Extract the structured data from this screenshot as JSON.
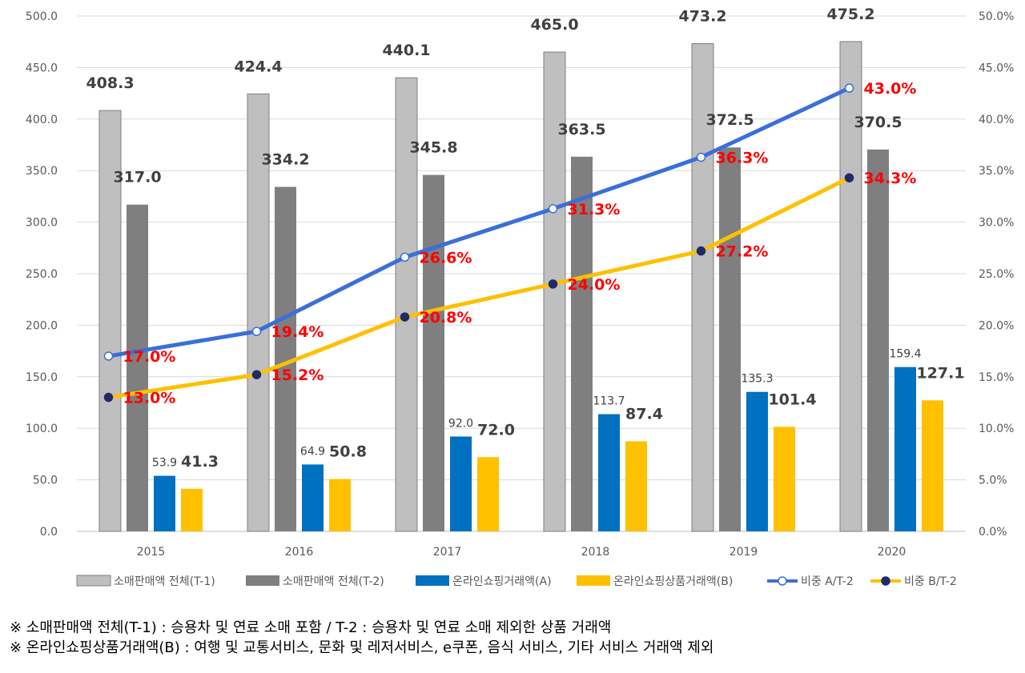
{
  "chart_data": {
    "type": "bar",
    "categories": [
      "2015",
      "2016",
      "2017",
      "2018",
      "2019",
      "2020"
    ],
    "series": [
      {
        "name": "소매판매액 전체(T-1)",
        "kind": "bar",
        "axis": "left",
        "color": "#bfbfbf",
        "label_style": "big",
        "values": [
          408.3,
          424.4,
          440.1,
          465.0,
          473.2,
          475.2
        ]
      },
      {
        "name": "소매판매액 전체(T-2)",
        "kind": "bar",
        "axis": "left",
        "color": "#7f7f7f",
        "label_style": "big",
        "values": [
          317.0,
          334.2,
          345.8,
          363.5,
          372.5,
          370.5
        ]
      },
      {
        "name": "온라인쇼핑거래액(A)",
        "kind": "bar",
        "axis": "left",
        "color": "#0070c0",
        "label_style": "small",
        "values": [
          53.9,
          64.9,
          92.0,
          113.7,
          135.3,
          159.4
        ]
      },
      {
        "name": "온라인쇼핑상품거래액(B)",
        "kind": "bar",
        "axis": "left",
        "color": "#ffc000",
        "label_style": "big",
        "values": [
          41.3,
          50.8,
          72.0,
          87.4,
          101.4,
          127.1
        ]
      },
      {
        "name": "비중 A/T-2",
        "kind": "line",
        "axis": "right",
        "color": "#3a6fd8",
        "marker_fill": "#ffffff",
        "marker_stroke": "#3a6fd8",
        "values": [
          17.0,
          19.4,
          26.6,
          31.3,
          36.3,
          43.0
        ]
      },
      {
        "name": "비중 B/T-2",
        "kind": "line",
        "axis": "right",
        "color": "#ffc000",
        "marker_fill": "#1f2a6b",
        "marker_stroke": "#1f2a6b",
        "values": [
          13.0,
          15.2,
          20.8,
          24.0,
          27.2,
          34.3
        ]
      }
    ],
    "left_axis": {
      "min": 0,
      "max": 500,
      "step": 50,
      "ticks": [
        "0.0",
        "50.0",
        "100.0",
        "150.0",
        "200.0",
        "250.0",
        "300.0",
        "350.0",
        "400.0",
        "450.0",
        "500.0"
      ]
    },
    "right_axis": {
      "min": 0,
      "max": 50,
      "step": 5,
      "ticks": [
        "0.0%",
        "5.0%",
        "10.0%",
        "15.0%",
        "20.0%",
        "25.0%",
        "30.0%",
        "35.0%",
        "40.0%",
        "45.0%",
        "50.0%"
      ]
    },
    "grid": true,
    "legend_position": "bottom",
    "title": "",
    "xlabel": "",
    "ylabel": ""
  },
  "notes": [
    "※ 소매판매액 전체(T-1) : 승용차 및 연료 소매 포함 / T-2 : 승용차 및 연료 소매 제외한 상품 거래액",
    "※ 온라인쇼핑상품거래액(B) : 여행 및 교통서비스, 문화 및 레저서비스, e쿠폰, 음식 서비스, 기타 서비스 거래액 제외"
  ]
}
